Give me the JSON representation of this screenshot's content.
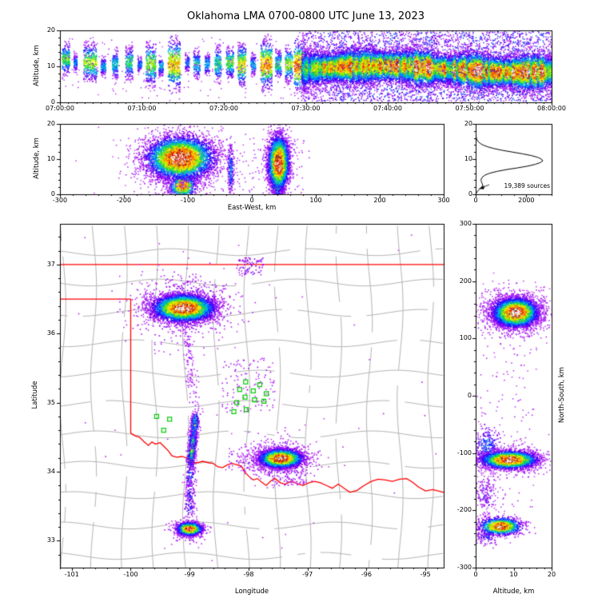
{
  "title": "Oklahoma LMA 0700-0800 UTC June 13, 2023",
  "colors": {
    "frame_border": "#c9c9c9",
    "plot_bg": "#ffffff",
    "county_line": "#b5b5b5",
    "state_line": "#ff0000",
    "station": "#00cc00",
    "curve": "#000000",
    "text": "#000000"
  },
  "axes": {
    "time_height": {
      "ylabel": "Altitude, km",
      "ytick_labels": [
        "0",
        "10",
        "20"
      ],
      "xtick_labels": [
        "07:00:00",
        "07:10:00",
        "07:20:00",
        "07:30:00",
        "07:40:00",
        "07:50:00",
        "08:00:00"
      ]
    },
    "ew_height": {
      "ylabel": "Altitude, km",
      "xlabel": "East-West, km",
      "xtick_labels": [
        "-300",
        "-200",
        "-100",
        "0",
        "100",
        "200",
        "300"
      ],
      "ytick_labels": [
        "0",
        "10",
        "20"
      ]
    },
    "histogram": {
      "xtick_labels": [
        "0",
        "2000"
      ],
      "ytick_labels": [
        "0",
        "10",
        "20"
      ],
      "annotation": "19,389 sources"
    },
    "plan": {
      "xlabel": "Longitude",
      "ylabel": "Latitude",
      "xtick_labels": [
        "-101",
        "-100",
        "-99",
        "-98",
        "-97",
        "-96",
        "-95"
      ],
      "ytick_labels": [
        "33",
        "34",
        "35",
        "36",
        "37"
      ]
    },
    "ns_height": {
      "xlabel": "Altitude, km",
      "ylabel": "North-South, km",
      "xtick_labels": [
        "0",
        "10",
        "20"
      ],
      "ytick_labels": [
        "-300",
        "-200",
        "-100",
        "0",
        "100",
        "200",
        "300"
      ]
    }
  },
  "chart_data": {
    "type": "scatter",
    "description": "Lightning Mapping Array source density, four linked panels: altitude-time, altitude-EW, plan view lat/lon, NS-altitude, plus altitude histogram",
    "total_sources_label": "19,389 sources",
    "colormap_stops": [
      [
        0.0,
        "#cc55ff"
      ],
      [
        0.1,
        "#9900ee"
      ],
      [
        0.2,
        "#2200ff"
      ],
      [
        0.3,
        "#0077ff"
      ],
      [
        0.38,
        "#00ccee"
      ],
      [
        0.46,
        "#00cc44"
      ],
      [
        0.56,
        "#aaee00"
      ],
      [
        0.64,
        "#ffff00"
      ],
      [
        0.74,
        "#ff9900"
      ],
      [
        0.84,
        "#ff2200"
      ],
      [
        0.9,
        "#bb0000"
      ],
      [
        0.94,
        "#444444"
      ],
      [
        1.0,
        "#ffffff"
      ]
    ],
    "time_height": {
      "xlim": [
        0,
        3600
      ],
      "ylim": [
        0,
        20
      ],
      "bursts": [
        [
          0.3,
          0.9,
          0.5,
          7,
          17,
          260
        ],
        [
          1.7,
          0.4,
          0.3,
          8,
          14,
          90
        ],
        [
          2.9,
          1.6,
          0.55,
          5,
          17,
          380
        ],
        [
          5.0,
          0.6,
          0.35,
          7,
          13,
          130
        ],
        [
          6.4,
          0.7,
          0.4,
          6,
          15,
          170
        ],
        [
          8.0,
          0.9,
          0.45,
          6,
          16,
          210
        ],
        [
          9.5,
          0.5,
          0.3,
          8,
          13,
          90
        ],
        [
          10.5,
          1.2,
          0.55,
          4,
          17,
          320
        ],
        [
          12.1,
          0.5,
          0.35,
          7,
          13,
          100
        ],
        [
          13.2,
          1.5,
          0.68,
          3,
          18,
          450
        ],
        [
          15.3,
          0.5,
          0.3,
          8,
          14,
          90
        ],
        [
          16.3,
          0.8,
          0.4,
          6,
          15,
          160
        ],
        [
          17.7,
          0.6,
          0.35,
          7,
          14,
          110
        ],
        [
          18.9,
          0.8,
          0.45,
          5,
          16,
          190
        ],
        [
          20.3,
          0.9,
          0.5,
          6,
          16,
          230
        ],
        [
          21.7,
          1.0,
          0.62,
          4,
          17,
          300
        ],
        [
          23.3,
          0.6,
          0.35,
          7,
          14,
          110
        ],
        [
          24.5,
          1.4,
          0.72,
          3,
          18,
          460
        ],
        [
          26.3,
          0.7,
          0.45,
          6,
          15,
          170
        ],
        [
          27.5,
          0.9,
          0.55,
          5,
          16,
          220
        ],
        [
          28.6,
          1.4,
          0.8,
          2,
          18,
          420
        ]
      ],
      "band": {
        "t0_min": 29.5,
        "t1_min": 60,
        "n": 26000,
        "uniform_frac": 0.17
      },
      "sprinkle": {
        "t0_min": 0,
        "t1_min": 29.5,
        "alt_lo": 1,
        "alt_hi": 18,
        "n": 130,
        "amp": 0.07
      }
    },
    "ew_height": {
      "xlim": [
        -300,
        300
      ],
      "ylim": [
        0,
        20
      ],
      "clusters": [
        [
          -112,
          10,
          46,
          5.6,
          900,
          0.2
        ],
        [
          -112,
          5,
          30,
          3,
          350,
          0.12
        ],
        [
          -33,
          7,
          2.6,
          4.2,
          240,
          0.32
        ],
        [
          42,
          9.5,
          12,
          5,
          700,
          0.25
        ],
        [
          40,
          3,
          5,
          2.2,
          500,
          0.6
        ],
        [
          -108,
          2.3,
          11,
          1.7,
          700,
          0.85
        ],
        [
          -112,
          10.3,
          27,
          3.1,
          4800,
          1.0
        ],
        [
          42,
          8.8,
          8.5,
          4.0,
          3000,
          1.0
        ]
      ],
      "regions": [
        [
          -180,
          90,
          0,
          16,
          260,
          0.05
        ]
      ]
    },
    "histogram": {
      "xlim": [
        0,
        3000
      ],
      "ylim": [
        0,
        20
      ],
      "alt_km": [
        0,
        0.5,
        1.0,
        1.5,
        2.0,
        2.5,
        3.0,
        3.5,
        4.0,
        4.5,
        5.0,
        5.5,
        6.0,
        6.5,
        7.0,
        7.5,
        8.0,
        8.5,
        9.0,
        9.5,
        10.0,
        10.5,
        11.0,
        11.5,
        12.0,
        12.5,
        13.0,
        13.5,
        14.0,
        14.5,
        15.0,
        15.5,
        16.0,
        17.0,
        18.0,
        19.0,
        20.0
      ],
      "counts": [
        5,
        40,
        90,
        160,
        230,
        280,
        260,
        230,
        210,
        230,
        280,
        380,
        560,
        840,
        1200,
        1650,
        2050,
        2350,
        2550,
        2650,
        2600,
        2450,
        2200,
        1850,
        1450,
        1050,
        720,
        470,
        290,
        170,
        95,
        50,
        25,
        8,
        2,
        0,
        0
      ]
    },
    "plan": {
      "xlim": [
        -101.2,
        -94.69
      ],
      "ylim": [
        32.61,
        37.59
      ],
      "clusters": [
        [
          -99.1,
          36.38,
          0.5,
          0.24,
          900,
          0.18
        ],
        [
          -97.45,
          34.18,
          0.34,
          0.17,
          550,
          0.18
        ],
        [
          -99.0,
          33.15,
          0.18,
          0.1,
          220,
          0.15
        ],
        [
          -99.1,
          36.37,
          0.27,
          0.1,
          4600,
          1.0
        ],
        [
          -97.45,
          34.19,
          0.19,
          0.07,
          2800,
          1.0
        ],
        [
          -99.0,
          33.17,
          0.11,
          0.05,
          1300,
          0.92
        ]
      ],
      "line_clusters": [
        [
          -99.08,
          36.15,
          -98.88,
          34.82,
          0.06,
          210,
          0.09
        ],
        [
          -98.9,
          34.8,
          -98.98,
          34.15,
          0.035,
          950,
          0.7
        ],
        [
          -98.98,
          34.15,
          -99.0,
          33.42,
          0.05,
          300,
          0.28
        ]
      ],
      "regions": [
        [
          -98.45,
          -97.55,
          34.85,
          35.65,
          130,
          0.07
        ],
        [
          -97.6,
          -97.0,
          33.8,
          34.05,
          70,
          0.07
        ],
        [
          -98.2,
          -97.75,
          36.85,
          37.1,
          80,
          0.12
        ],
        [
          -98.35,
          -97.7,
          34.0,
          34.35,
          90,
          0.08
        ],
        [
          -101.1,
          -94.8,
          32.7,
          37.5,
          45,
          0.05
        ]
      ],
      "stations": [
        [
          -99.56,
          34.8
        ],
        [
          -99.44,
          34.6
        ],
        [
          -99.34,
          34.76
        ],
        [
          -98.15,
          35.19
        ],
        [
          -98.05,
          35.3
        ],
        [
          -97.92,
          35.17
        ],
        [
          -97.81,
          35.26
        ],
        [
          -97.7,
          35.13
        ],
        [
          -97.74,
          35.02
        ],
        [
          -97.9,
          35.04
        ],
        [
          -98.06,
          35.08
        ],
        [
          -98.2,
          35.0
        ],
        [
          -98.25,
          34.87
        ],
        [
          -98.04,
          34.9
        ]
      ],
      "border_lat37": [
        [
          -101.2,
          37
        ],
        [
          -94.69,
          37
        ]
      ],
      "border_west_redriver": [
        [
          -101.2,
          36.5
        ],
        [
          -100,
          36.5
        ],
        [
          -100,
          34.56
        ],
        [
          -99.93,
          34.52
        ],
        [
          -99.85,
          34.5
        ],
        [
          -99.78,
          34.44
        ],
        [
          -99.7,
          34.38
        ],
        [
          -99.64,
          34.43
        ],
        [
          -99.58,
          34.4
        ],
        [
          -99.5,
          34.42
        ],
        [
          -99.44,
          34.37
        ],
        [
          -99.36,
          34.3
        ],
        [
          -99.3,
          34.23
        ],
        [
          -99.22,
          34.21
        ],
        [
          -99.13,
          34.22
        ],
        [
          -99.05,
          34.2
        ],
        [
          -98.97,
          34.13
        ],
        [
          -98.87,
          34.13
        ],
        [
          -98.78,
          34.15
        ],
        [
          -98.68,
          34.13
        ],
        [
          -98.6,
          34.12
        ],
        [
          -98.52,
          34.07
        ],
        [
          -98.44,
          34.06
        ],
        [
          -98.36,
          34.1
        ],
        [
          -98.28,
          34.12
        ],
        [
          -98.2,
          34.1
        ],
        [
          -98.12,
          34.08
        ],
        [
          -98.06,
          33.99
        ],
        [
          -97.98,
          33.92
        ],
        [
          -97.92,
          33.88
        ],
        [
          -97.85,
          33.9
        ],
        [
          -97.78,
          33.85
        ],
        [
          -97.7,
          33.8
        ],
        [
          -97.62,
          33.87
        ],
        [
          -97.55,
          33.9
        ],
        [
          -97.46,
          33.84
        ],
        [
          -97.38,
          33.82
        ],
        [
          -97.28,
          33.86
        ],
        [
          -97.18,
          33.83
        ],
        [
          -97.08,
          33.8
        ],
        [
          -96.98,
          33.84
        ],
        [
          -96.88,
          33.86
        ],
        [
          -96.78,
          33.84
        ],
        [
          -96.68,
          33.8
        ],
        [
          -96.58,
          33.76
        ],
        [
          -96.48,
          33.82
        ],
        [
          -96.38,
          33.76
        ],
        [
          -96.28,
          33.7
        ],
        [
          -96.16,
          33.73
        ],
        [
          -96.04,
          33.8
        ],
        [
          -95.92,
          33.86
        ],
        [
          -95.8,
          33.89
        ],
        [
          -95.68,
          33.88
        ],
        [
          -95.56,
          33.86
        ],
        [
          -95.44,
          33.89
        ],
        [
          -95.32,
          33.9
        ],
        [
          -95.22,
          33.85
        ],
        [
          -95.12,
          33.78
        ],
        [
          -95.0,
          33.72
        ],
        [
          -94.88,
          33.74
        ],
        [
          -94.78,
          33.72
        ],
        [
          -94.69,
          33.7
        ]
      ]
    },
    "ns_height": {
      "xlim": [
        0,
        20
      ],
      "ylim": [
        -300,
        300
      ],
      "clusters": [
        [
          10.5,
          145,
          5.6,
          24,
          900,
          0.2
        ],
        [
          9,
          -112,
          5,
          14,
          700,
          0.22
        ],
        [
          3,
          -90,
          2,
          22,
          320,
          0.28
        ],
        [
          2.6,
          -170,
          1.8,
          24,
          200,
          0.14
        ],
        [
          3,
          -245,
          2,
          10,
          150,
          0.2
        ],
        [
          10.5,
          145,
          3.1,
          13,
          4800,
          1.0
        ],
        [
          8.8,
          -112,
          3.8,
          8,
          2900,
          1.0
        ],
        [
          6.5,
          -228,
          2.9,
          8,
          1300,
          0.9
        ]
      ],
      "regions": [
        [
          0.3,
          16,
          -260,
          190,
          260,
          0.05
        ]
      ]
    }
  }
}
